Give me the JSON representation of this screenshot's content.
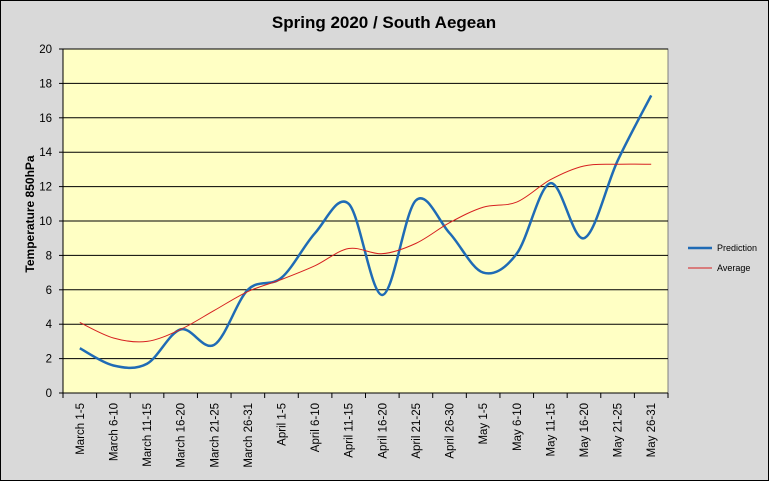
{
  "chart_data": {
    "type": "line",
    "title": "Spring 2020 / South Aegean",
    "ylabel": "Temperature 850hPa",
    "xlabel": "",
    "ylim": [
      0,
      20
    ],
    "yticks": [
      0,
      2,
      4,
      6,
      8,
      10,
      12,
      14,
      16,
      18,
      20
    ],
    "grid": true,
    "legend_position": "right",
    "categories": [
      "March 1-5",
      "March 6-10",
      "March 11-15",
      "March 16-20",
      "March 21-25",
      "March 26-31",
      "April 1-5",
      "April 6-10",
      "April 11-15",
      "April 16-20",
      "April 21-25",
      "April 26-30",
      "May 1-5",
      "May 6-10",
      "May 11-15",
      "May 16-20",
      "May 21-25",
      "May 26-31"
    ],
    "series": [
      {
        "name": "Prediction",
        "color": "#1f6bb5",
        "values": [
          2.6,
          1.6,
          1.7,
          3.7,
          2.8,
          6.0,
          6.7,
          9.3,
          11.0,
          5.7,
          11.2,
          9.3,
          7.0,
          8.1,
          12.2,
          9.0,
          13.5,
          17.3
        ]
      },
      {
        "name": "Average",
        "color": "#d62020",
        "values": [
          4.1,
          3.2,
          3.0,
          3.7,
          4.8,
          5.9,
          6.6,
          7.4,
          8.4,
          8.1,
          8.7,
          9.9,
          10.8,
          11.1,
          12.4,
          13.2,
          13.3,
          13.3
        ]
      }
    ]
  }
}
